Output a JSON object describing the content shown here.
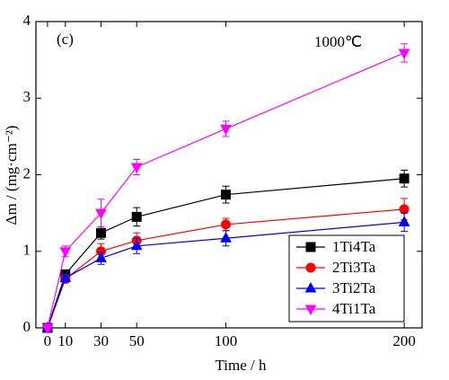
{
  "chart_data": {
    "type": "line",
    "x_label": "Time / h",
    "y_label": "Δm / (mg·cm⁻²)",
    "annotations": [
      "(c)",
      "1000℃"
    ],
    "x": [
      0,
      10,
      30,
      50,
      100,
      200
    ],
    "xlim": [
      -6.5,
      210
    ],
    "ylim": [
      0,
      4
    ],
    "xticks": [
      0,
      10,
      30,
      50,
      100,
      200
    ],
    "yticks": [
      0,
      1,
      2,
      3,
      4
    ],
    "legend": "lower right",
    "series": [
      {
        "name": "1Ti4Ta",
        "color": "#000000",
        "marker": "square",
        "values": [
          0,
          0.7,
          1.24,
          1.45,
          1.74,
          1.95
        ],
        "errors": [
          0,
          0.05,
          0.08,
          0.12,
          0.11,
          0.11
        ]
      },
      {
        "name": "2Ti3Ta",
        "color": "#ff0000",
        "marker": "circle",
        "values": [
          0,
          0.64,
          1.0,
          1.14,
          1.35,
          1.55
        ],
        "errors": [
          0,
          0.05,
          0.1,
          0.1,
          0.08,
          0.14
        ]
      },
      {
        "name": "3Ti2Ta",
        "color": "#0000ff",
        "marker": "triangle-up",
        "values": [
          0,
          0.65,
          0.91,
          1.07,
          1.17,
          1.38
        ],
        "errors": [
          0,
          0.05,
          0.08,
          0.1,
          0.1,
          0.12
        ]
      },
      {
        "name": "4Ti1Ta",
        "color": "#ff00ff",
        "marker": "triangle-down",
        "values": [
          0,
          1.0,
          1.5,
          2.1,
          2.6,
          3.59
        ],
        "errors": [
          0,
          0.07,
          0.18,
          0.1,
          0.1,
          0.12
        ]
      }
    ]
  }
}
